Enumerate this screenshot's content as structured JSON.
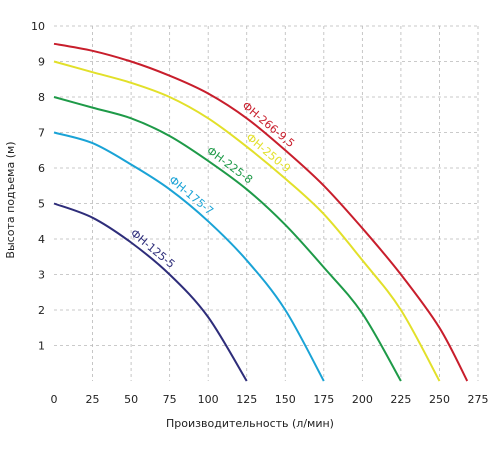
{
  "chart_data": {
    "type": "line",
    "xlabel": "Производительность (л/мин)",
    "ylabel": "Высота подъема (м)",
    "xlim": [
      0,
      275
    ],
    "ylim": [
      0,
      10
    ],
    "x_ticks": [
      0,
      25,
      50,
      75,
      100,
      125,
      150,
      175,
      200,
      225,
      250,
      275
    ],
    "y_ticks": [
      1,
      2,
      3,
      4,
      5,
      6,
      7,
      8,
      9,
      10
    ],
    "grid": true,
    "series": [
      {
        "name": "ФН-266-9,5",
        "color": "#c81e2c",
        "x": [
          0,
          25,
          50,
          75,
          100,
          125,
          150,
          175,
          200,
          225,
          250,
          268
        ],
        "y": [
          9.5,
          9.3,
          9.0,
          8.6,
          8.1,
          7.4,
          6.5,
          5.5,
          4.3,
          3.0,
          1.5,
          0.0
        ]
      },
      {
        "name": "ФН-250-9",
        "color": "#e2e02a",
        "x": [
          0,
          25,
          50,
          75,
          100,
          125,
          150,
          175,
          200,
          225,
          250
        ],
        "y": [
          9.0,
          8.7,
          8.4,
          8.0,
          7.4,
          6.6,
          5.7,
          4.7,
          3.4,
          2.0,
          0.0
        ]
      },
      {
        "name": "ФН-225-8",
        "color": "#1e9a48",
        "x": [
          0,
          25,
          50,
          75,
          100,
          125,
          150,
          175,
          200,
          225
        ],
        "y": [
          8.0,
          7.7,
          7.4,
          6.9,
          6.2,
          5.4,
          4.4,
          3.2,
          1.9,
          0.0
        ]
      },
      {
        "name": "ФН-175-7",
        "color": "#1aa3d6",
        "x": [
          0,
          25,
          50,
          75,
          100,
          125,
          150,
          175
        ],
        "y": [
          7.0,
          6.7,
          6.1,
          5.4,
          4.5,
          3.4,
          2.0,
          0.0
        ]
      },
      {
        "name": "ФН-125-5",
        "color": "#2e2d7a",
        "x": [
          0,
          25,
          50,
          75,
          100,
          125
        ],
        "y": [
          5.0,
          4.6,
          3.9,
          3.0,
          1.8,
          0.0
        ]
      }
    ]
  }
}
